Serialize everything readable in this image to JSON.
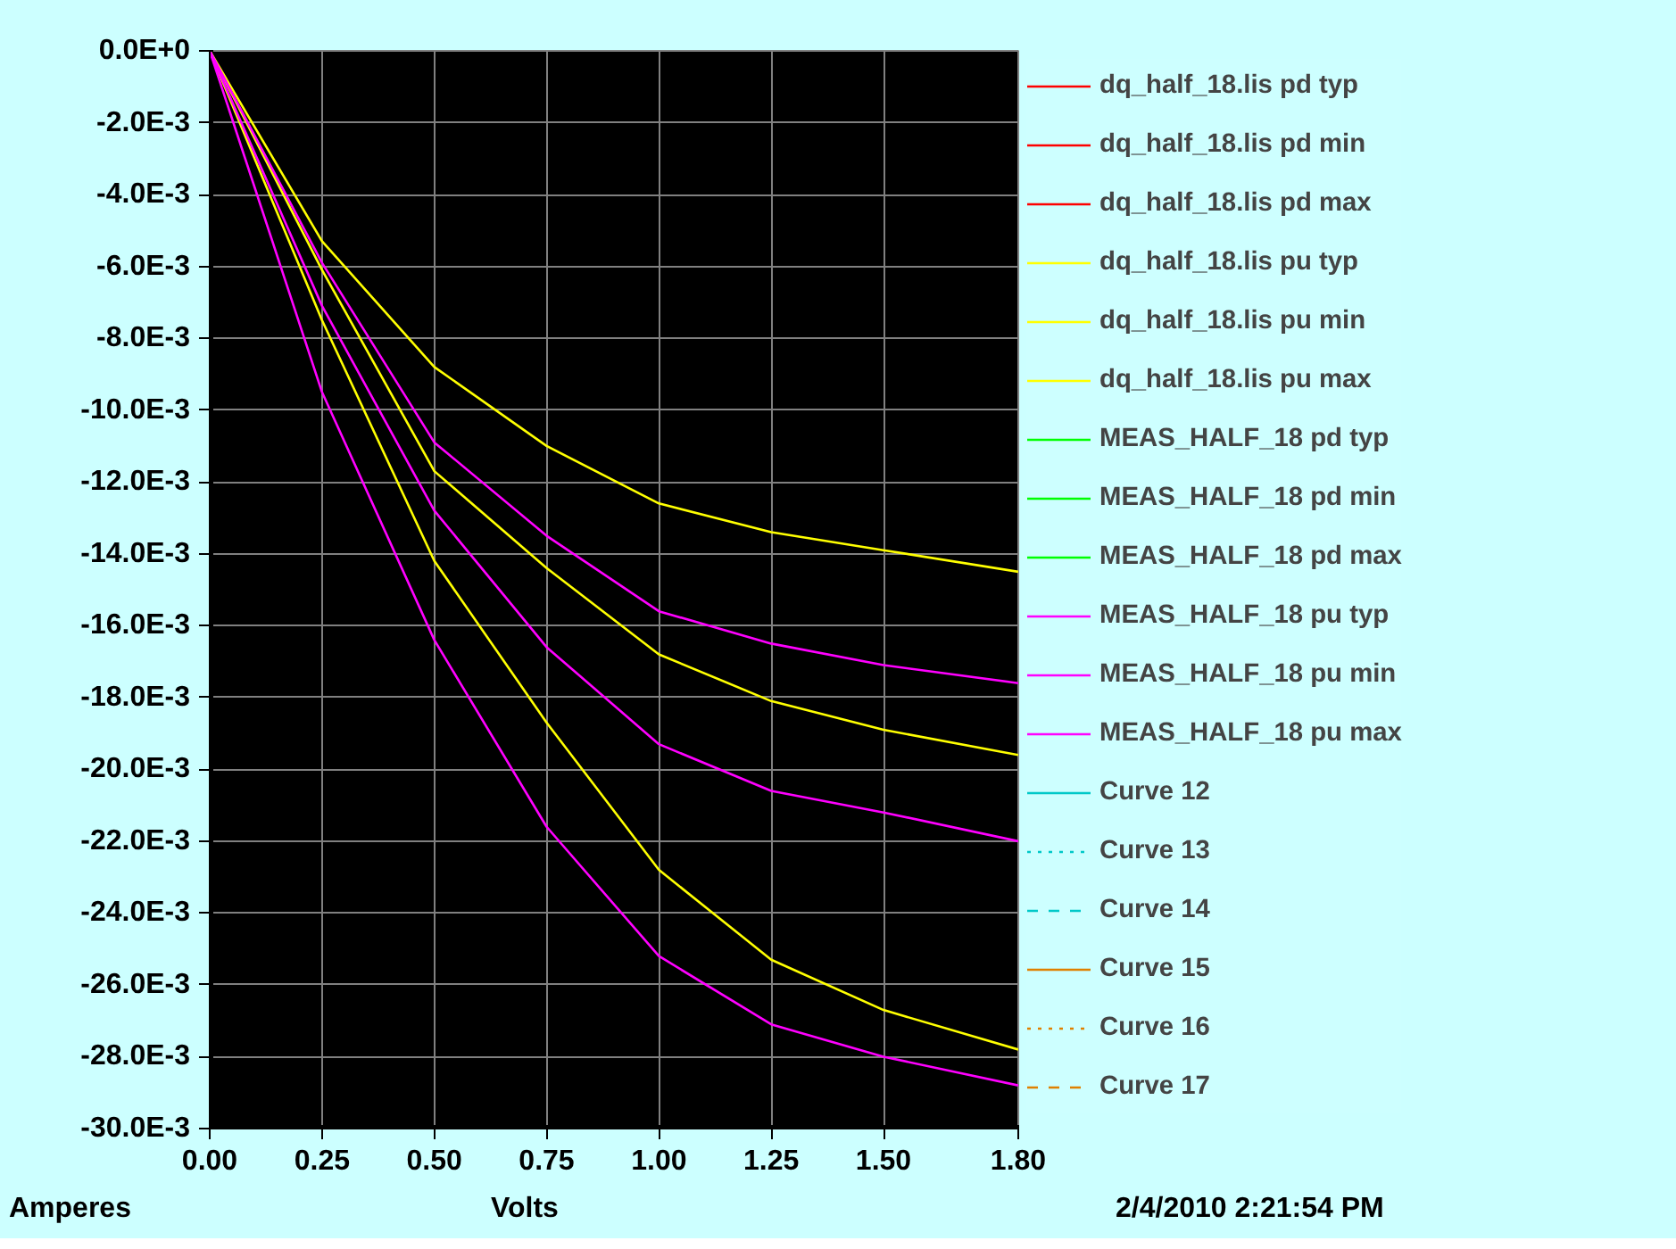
{
  "chart_data": {
    "type": "line",
    "xlabel": "Volts",
    "ylabel": "Amperes",
    "annotations": [
      "2/4/2010 2:21:54 PM"
    ],
    "x": [
      0,
      0.25,
      0.5,
      0.75,
      1.0,
      1.25,
      1.5,
      1.8
    ],
    "xlim": [
      0,
      1.8
    ],
    "xticks": [
      {
        "value": 0,
        "label": "0.00"
      },
      {
        "value": 0.25,
        "label": "0.25"
      },
      {
        "value": 0.5,
        "label": "0.50"
      },
      {
        "value": 0.75,
        "label": "0.75"
      },
      {
        "value": 1.0,
        "label": "1.00"
      },
      {
        "value": 1.25,
        "label": "1.25"
      },
      {
        "value": 1.5,
        "label": "1.50"
      },
      {
        "value": 1.8,
        "label": "1.80"
      }
    ],
    "ylim": [
      -0.03,
      0
    ],
    "yticks": [
      {
        "value": 0,
        "label": "0.0E+0"
      },
      {
        "value": -0.002,
        "label": "-2.0E-3"
      },
      {
        "value": -0.004,
        "label": "-4.0E-3"
      },
      {
        "value": -0.006,
        "label": "-6.0E-3"
      },
      {
        "value": -0.008,
        "label": "-8.0E-3"
      },
      {
        "value": -0.01,
        "label": "-10.0E-3"
      },
      {
        "value": -0.012,
        "label": "-12.0E-3"
      },
      {
        "value": -0.014,
        "label": "-14.0E-3"
      },
      {
        "value": -0.016,
        "label": "-16.0E-3"
      },
      {
        "value": -0.018,
        "label": "-18.0E-3"
      },
      {
        "value": -0.02,
        "label": "-20.0E-3"
      },
      {
        "value": -0.022,
        "label": "-22.0E-3"
      },
      {
        "value": -0.024,
        "label": "-24.0E-3"
      },
      {
        "value": -0.026,
        "label": "-26.0E-3"
      },
      {
        "value": -0.028,
        "label": "-28.0E-3"
      },
      {
        "value": -0.03,
        "label": "-30.0E-3"
      }
    ],
    "grid": true,
    "legend": "right",
    "marker": "none",
    "series": [
      {
        "name": "dq_half_18.lis pd typ",
        "color": "#ff0000",
        "values": [
          null,
          null,
          null,
          null,
          null,
          null,
          null,
          null
        ]
      },
      {
        "name": "dq_half_18.lis pd min",
        "color": "#ff0000",
        "values": [
          null,
          null,
          null,
          null,
          null,
          null,
          null,
          null
        ]
      },
      {
        "name": "dq_half_18.lis pd max",
        "color": "#ff0000",
        "values": [
          null,
          null,
          null,
          null,
          null,
          null,
          null,
          null
        ]
      },
      {
        "name": "dq_half_18.lis pu typ",
        "color": "#ffff00",
        "values": [
          0,
          -0.0061,
          -0.0117,
          -0.0144,
          -0.0168,
          -0.0181,
          -0.0189,
          -0.0196
        ]
      },
      {
        "name": "dq_half_18.lis pu min",
        "color": "#ffff00",
        "values": [
          0,
          -0.0053,
          -0.0088,
          -0.011,
          -0.0126,
          -0.0134,
          -0.0139,
          -0.0145
        ]
      },
      {
        "name": "dq_half_18.lis pu max",
        "color": "#ffff00",
        "values": [
          0,
          -0.0075,
          -0.0142,
          -0.0187,
          -0.0228,
          -0.0253,
          -0.0267,
          -0.0278
        ]
      },
      {
        "name": "MEAS_HALF_18 pd typ",
        "color": "#00ff00",
        "values": [
          null,
          null,
          null,
          null,
          null,
          null,
          null,
          null
        ]
      },
      {
        "name": "MEAS_HALF_18 pd min",
        "color": "#00ff00",
        "values": [
          null,
          null,
          null,
          null,
          null,
          null,
          null,
          null
        ]
      },
      {
        "name": "MEAS_HALF_18 pd max",
        "color": "#00ff00",
        "values": [
          null,
          null,
          null,
          null,
          null,
          null,
          null,
          null
        ]
      },
      {
        "name": "MEAS_HALF_18 pu typ",
        "color": "#ff00ff",
        "values": [
          0,
          -0.0071,
          -0.0128,
          -0.0166,
          -0.0193,
          -0.0206,
          -0.0212,
          -0.022
        ]
      },
      {
        "name": "MEAS_HALF_18 pu min",
        "color": "#ff00ff",
        "values": [
          0,
          -0.0059,
          -0.0109,
          -0.0135,
          -0.0156,
          -0.0165,
          -0.0171,
          -0.0176
        ]
      },
      {
        "name": "MEAS_HALF_18 pu max",
        "color": "#ff00ff",
        "values": [
          0,
          -0.0095,
          -0.0164,
          -0.0216,
          -0.0252,
          -0.0271,
          -0.028,
          -0.0288
        ]
      },
      {
        "name": "Curve 12",
        "color": "#00c8c8",
        "values": [
          null,
          null,
          null,
          null,
          null,
          null,
          null,
          null
        ]
      },
      {
        "name": "Curve 13",
        "color": "#00c8c8",
        "line_style": "dotted",
        "values": [
          null,
          null,
          null,
          null,
          null,
          null,
          null,
          null
        ]
      },
      {
        "name": "Curve 14",
        "color": "#00c8c8",
        "line_style": "dashed",
        "values": [
          null,
          null,
          null,
          null,
          null,
          null,
          null,
          null
        ]
      },
      {
        "name": "Curve 15",
        "color": "#e08000",
        "values": [
          null,
          null,
          null,
          null,
          null,
          null,
          null,
          null
        ]
      },
      {
        "name": "Curve 16",
        "color": "#e08000",
        "line_style": "dotted",
        "values": [
          null,
          null,
          null,
          null,
          null,
          null,
          null,
          null
        ]
      },
      {
        "name": "Curve 17",
        "color": "#e08000",
        "line_style": "dashed",
        "values": [
          null,
          null,
          null,
          null,
          null,
          null,
          null,
          null
        ]
      }
    ]
  }
}
